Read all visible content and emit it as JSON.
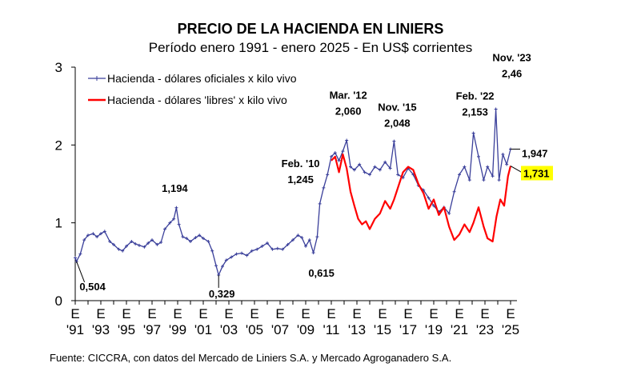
{
  "chart_data": {
    "type": "line",
    "title": "PRECIO DE LA HACIENDA EN LINIERS",
    "subtitle": "Período enero 1991 - enero 2025 - En US$ corrientes",
    "source": "Fuente: CICCRA, con datos del Mercado de Liniers S.A. y Mercado Agroganadero S.A.",
    "ylim": [
      0,
      3
    ],
    "xlim": [
      1991,
      2025.5
    ],
    "y_ticks": [
      {
        "value": 0,
        "label": "0"
      },
      {
        "value": 1,
        "label": "1"
      },
      {
        "value": 2,
        "label": "2"
      },
      {
        "value": 3,
        "label": "3"
      }
    ],
    "x_ticks": [
      {
        "year": 1991,
        "top": "E",
        "bottom": "'91"
      },
      {
        "year": 1993,
        "top": "E",
        "bottom": "'93"
      },
      {
        "year": 1995,
        "top": "E",
        "bottom": "'95"
      },
      {
        "year": 1997,
        "top": "E",
        "bottom": "'97"
      },
      {
        "year": 1999,
        "top": "E",
        "bottom": "'99"
      },
      {
        "year": 2001,
        "top": "E",
        "bottom": "'01"
      },
      {
        "year": 2003,
        "top": "E",
        "bottom": "'03"
      },
      {
        "year": 2005,
        "top": "E",
        "bottom": "'05"
      },
      {
        "year": 2007,
        "top": "E",
        "bottom": "'07"
      },
      {
        "year": 2009,
        "top": "E",
        "bottom": "'09"
      },
      {
        "year": 2011,
        "top": "E",
        "bottom": "'11"
      },
      {
        "year": 2013,
        "top": "E",
        "bottom": "'13"
      },
      {
        "year": 2015,
        "top": "E",
        "bottom": "'15"
      },
      {
        "year": 2017,
        "top": "E",
        "bottom": "'17"
      },
      {
        "year": 2019,
        "top": "E",
        "bottom": "'19"
      },
      {
        "year": 2021,
        "top": "E",
        "bottom": "'21"
      },
      {
        "year": 2023,
        "top": "E",
        "bottom": "'23"
      },
      {
        "year": 2025,
        "top": "E",
        "bottom": "'25"
      }
    ],
    "grid": false,
    "legend_position": "top-left",
    "series": [
      {
        "name": "Hacienda - dólares oficiales x kilo vivo",
        "color": "#3a3f9a",
        "marker": "+",
        "points": [
          [
            1991.0,
            0.55
          ],
          [
            1991.1,
            0.504
          ],
          [
            1991.4,
            0.6
          ],
          [
            1991.7,
            0.78
          ],
          [
            1992.0,
            0.84
          ],
          [
            1992.4,
            0.86
          ],
          [
            1992.7,
            0.82
          ],
          [
            1993.0,
            0.86
          ],
          [
            1993.3,
            0.89
          ],
          [
            1993.7,
            0.76
          ],
          [
            1994.0,
            0.72
          ],
          [
            1994.4,
            0.66
          ],
          [
            1994.7,
            0.64
          ],
          [
            1995.0,
            0.7
          ],
          [
            1995.4,
            0.76
          ],
          [
            1995.7,
            0.73
          ],
          [
            1996.0,
            0.71
          ],
          [
            1996.4,
            0.69
          ],
          [
            1996.7,
            0.74
          ],
          [
            1997.0,
            0.78
          ],
          [
            1997.4,
            0.72
          ],
          [
            1997.7,
            0.75
          ],
          [
            1998.0,
            0.92
          ],
          [
            1998.4,
            1.0
          ],
          [
            1998.7,
            1.05
          ],
          [
            1998.9,
            1.194
          ],
          [
            1999.1,
            0.98
          ],
          [
            1999.4,
            0.82
          ],
          [
            1999.7,
            0.8
          ],
          [
            2000.0,
            0.76
          ],
          [
            2000.4,
            0.81
          ],
          [
            2000.7,
            0.84
          ],
          [
            2001.0,
            0.8
          ],
          [
            2001.4,
            0.76
          ],
          [
            2001.7,
            0.64
          ],
          [
            2002.0,
            0.45
          ],
          [
            2002.2,
            0.329
          ],
          [
            2002.5,
            0.44
          ],
          [
            2002.8,
            0.52
          ],
          [
            2003.2,
            0.56
          ],
          [
            2003.6,
            0.6
          ],
          [
            2004.0,
            0.61
          ],
          [
            2004.4,
            0.58
          ],
          [
            2004.8,
            0.64
          ],
          [
            2005.2,
            0.66
          ],
          [
            2005.6,
            0.7
          ],
          [
            2006.0,
            0.74
          ],
          [
            2006.4,
            0.66
          ],
          [
            2006.8,
            0.67
          ],
          [
            2007.2,
            0.66
          ],
          [
            2007.6,
            0.72
          ],
          [
            2008.0,
            0.78
          ],
          [
            2008.4,
            0.84
          ],
          [
            2008.7,
            0.81
          ],
          [
            2009.0,
            0.7
          ],
          [
            2009.3,
            0.78
          ],
          [
            2009.6,
            0.615
          ],
          [
            2009.9,
            0.82
          ],
          [
            2010.1,
            1.245
          ],
          [
            2010.4,
            1.45
          ],
          [
            2010.7,
            1.62
          ],
          [
            2011.0,
            1.85
          ],
          [
            2011.3,
            1.9
          ],
          [
            2011.6,
            1.8
          ],
          [
            2011.9,
            1.92
          ],
          [
            2012.2,
            2.06
          ],
          [
            2012.5,
            1.72
          ],
          [
            2012.8,
            1.68
          ],
          [
            2013.2,
            1.75
          ],
          [
            2013.6,
            1.65
          ],
          [
            2014.0,
            1.62
          ],
          [
            2014.4,
            1.72
          ],
          [
            2014.8,
            1.68
          ],
          [
            2015.2,
            1.78
          ],
          [
            2015.6,
            1.7
          ],
          [
            2015.9,
            2.048
          ],
          [
            2016.2,
            1.62
          ],
          [
            2016.6,
            1.58
          ],
          [
            2017.0,
            1.7
          ],
          [
            2017.4,
            1.62
          ],
          [
            2017.8,
            1.48
          ],
          [
            2018.2,
            1.42
          ],
          [
            2018.6,
            1.32
          ],
          [
            2019.0,
            1.22
          ],
          [
            2019.4,
            1.14
          ],
          [
            2019.8,
            1.2
          ],
          [
            2020.2,
            1.12
          ],
          [
            2020.6,
            1.4
          ],
          [
            2021.0,
            1.62
          ],
          [
            2021.4,
            1.72
          ],
          [
            2021.8,
            1.55
          ],
          [
            2022.1,
            2.153
          ],
          [
            2022.5,
            1.85
          ],
          [
            2022.9,
            1.55
          ],
          [
            2023.2,
            1.72
          ],
          [
            2023.6,
            1.6
          ],
          [
            2023.85,
            2.46
          ],
          [
            2024.1,
            1.55
          ],
          [
            2024.4,
            1.88
          ],
          [
            2024.7,
            1.75
          ],
          [
            2025.0,
            1.947
          ]
        ]
      },
      {
        "name": "Hacienda - dólares 'libres' x kilo vivo",
        "color": "#ff0000",
        "marker": "none",
        "points": [
          [
            2011.0,
            1.8
          ],
          [
            2011.3,
            1.85
          ],
          [
            2011.6,
            1.65
          ],
          [
            2011.9,
            1.88
          ],
          [
            2012.2,
            1.7
          ],
          [
            2012.5,
            1.4
          ],
          [
            2012.8,
            1.22
          ],
          [
            2013.1,
            1.05
          ],
          [
            2013.4,
            0.98
          ],
          [
            2013.7,
            1.02
          ],
          [
            2014.0,
            0.92
          ],
          [
            2014.4,
            1.05
          ],
          [
            2014.8,
            1.12
          ],
          [
            2015.2,
            1.28
          ],
          [
            2015.6,
            1.18
          ],
          [
            2015.9,
            1.3
          ],
          [
            2016.2,
            1.45
          ],
          [
            2016.6,
            1.65
          ],
          [
            2017.0,
            1.72
          ],
          [
            2017.4,
            1.68
          ],
          [
            2017.8,
            1.5
          ],
          [
            2018.2,
            1.38
          ],
          [
            2018.6,
            1.18
          ],
          [
            2019.0,
            1.3
          ],
          [
            2019.4,
            1.1
          ],
          [
            2019.8,
            1.2
          ],
          [
            2020.2,
            0.95
          ],
          [
            2020.6,
            0.78
          ],
          [
            2021.0,
            0.85
          ],
          [
            2021.4,
            0.98
          ],
          [
            2021.8,
            0.88
          ],
          [
            2022.1,
            1.0
          ],
          [
            2022.5,
            1.2
          ],
          [
            2022.9,
            0.95
          ],
          [
            2023.2,
            0.8
          ],
          [
            2023.6,
            0.76
          ],
          [
            2023.9,
            1.08
          ],
          [
            2024.2,
            1.3
          ],
          [
            2024.5,
            1.22
          ],
          [
            2024.8,
            1.6
          ],
          [
            2025.0,
            1.731
          ]
        ]
      }
    ],
    "annotations": [
      {
        "id": "v1991",
        "x": 1991.1,
        "y": 0.504,
        "text": "0,504",
        "leader": true
      },
      {
        "id": "v1998",
        "x": 1998.9,
        "y": 1.194,
        "text": "1,194",
        "leader": false
      },
      {
        "id": "v2002",
        "x": 2002.2,
        "y": 0.329,
        "text": "0,329",
        "leader": true
      },
      {
        "id": "v2009",
        "x": 2009.6,
        "y": 0.615,
        "text": "0,615",
        "leader": false
      },
      {
        "id": "v2010",
        "x": 2010.1,
        "y": 1.245,
        "text": "1,245",
        "label_top": "Feb. '10",
        "leader": false
      },
      {
        "id": "v2012",
        "x": 2012.2,
        "y": 2.06,
        "text": "2,060",
        "label_top": "Mar. '12",
        "leader": false
      },
      {
        "id": "v2015",
        "x": 2015.9,
        "y": 2.048,
        "text": "2,048",
        "label_top": "Nov. '15",
        "leader": false
      },
      {
        "id": "v2022",
        "x": 2022.1,
        "y": 2.153,
        "text": "2,153",
        "label_top": "Feb. '22",
        "leader": false
      },
      {
        "id": "v2023",
        "x": 2023.85,
        "y": 2.46,
        "text": "2,46",
        "label_top": "Nov. '23",
        "leader": false
      },
      {
        "id": "v2025b",
        "x": 2025.0,
        "y": 1.947,
        "text": "1,947",
        "leader": true
      },
      {
        "id": "v2025r",
        "x": 2025.0,
        "y": 1.731,
        "text": "1,731",
        "highlight": "#ffff00",
        "leader": true
      }
    ]
  }
}
